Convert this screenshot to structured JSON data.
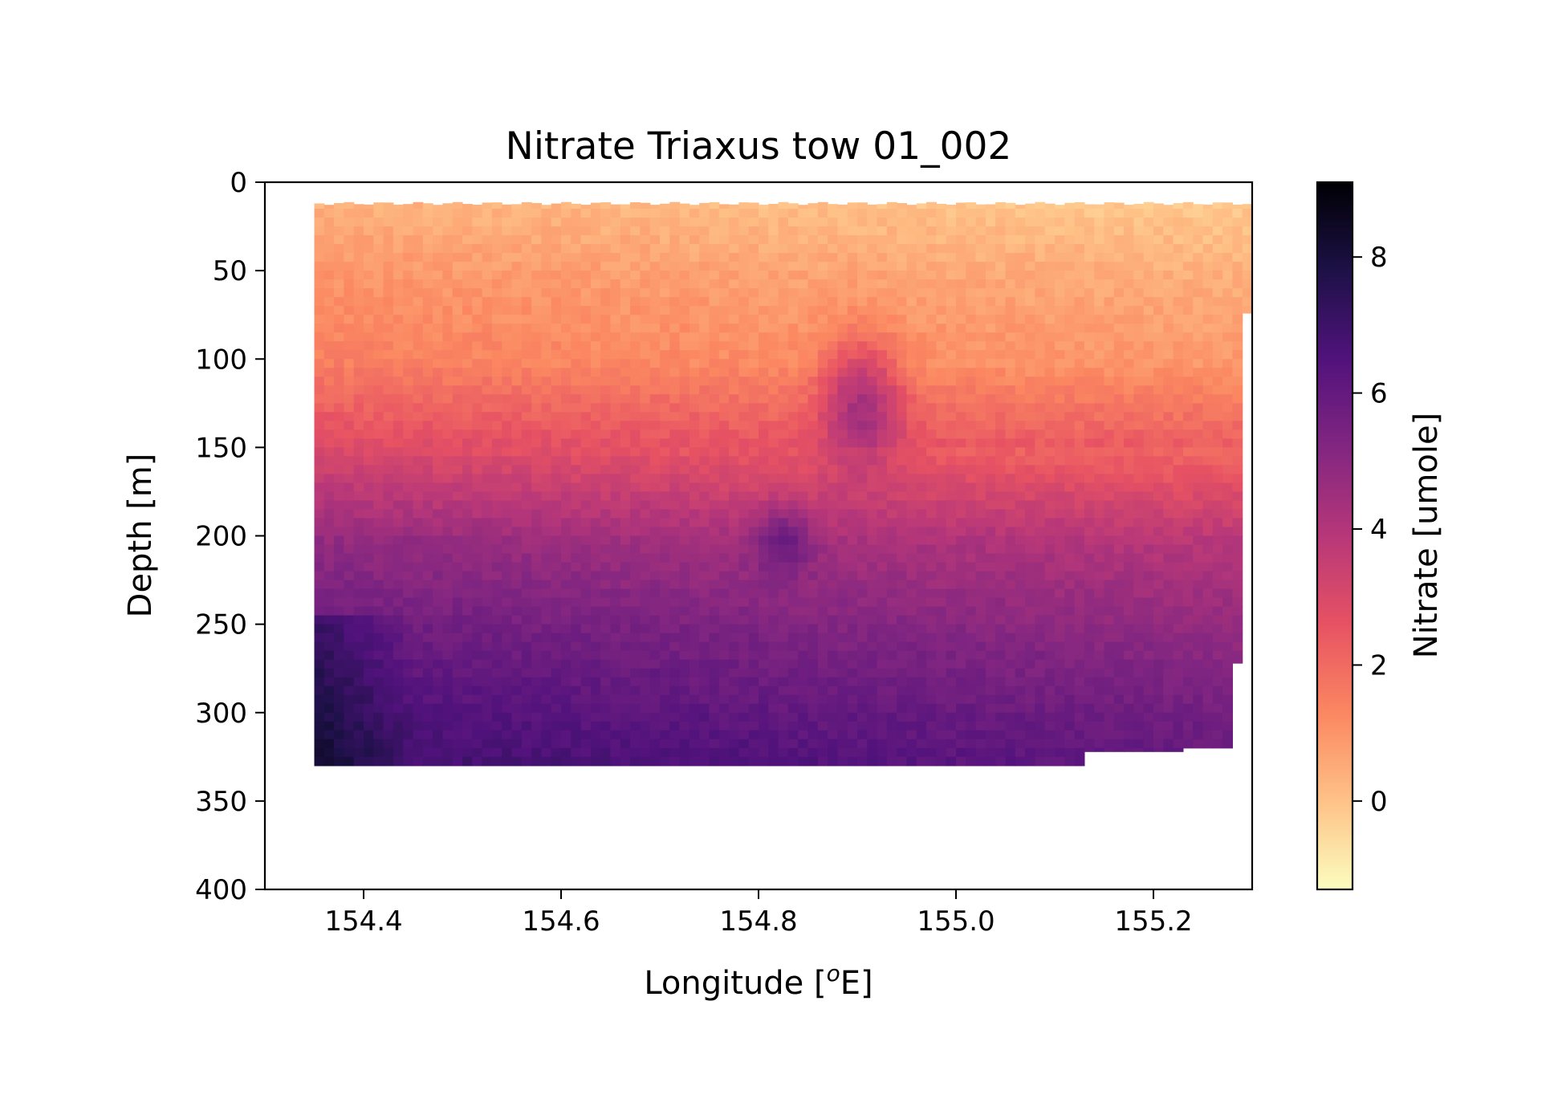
{
  "chart_data": {
    "type": "heatmap",
    "title": "Nitrate Triaxus tow 01_002",
    "xlabel": "Longitude [",
    "xlabel_sup": "o",
    "xlabel_tail": "E]",
    "ylabel": "Depth [m]",
    "xlim": [
      154.3,
      155.3
    ],
    "ylim": [
      400,
      0
    ],
    "y_inverted": true,
    "grid": false,
    "colormap": "magma_r",
    "xticks": [
      {
        "value": 154.4,
        "label": "154.4"
      },
      {
        "value": 154.6,
        "label": "154.6"
      },
      {
        "value": 154.8,
        "label": "154.8"
      },
      {
        "value": 155.0,
        "label": "155.0"
      },
      {
        "value": 155.2,
        "label": "155.2"
      }
    ],
    "yticks": [
      {
        "value": 0,
        "label": "0"
      },
      {
        "value": 50,
        "label": "50"
      },
      {
        "value": 100,
        "label": "100"
      },
      {
        "value": 150,
        "label": "150"
      },
      {
        "value": 200,
        "label": "200"
      },
      {
        "value": 250,
        "label": "250"
      },
      {
        "value": 300,
        "label": "300"
      },
      {
        "value": 350,
        "label": "350"
      },
      {
        "value": 400,
        "label": "400"
      }
    ],
    "colorbar": {
      "label": "Nitrate [umole]",
      "range": [
        -1.3,
        9.1
      ],
      "ticks": [
        {
          "value": 0,
          "label": "0"
        },
        {
          "value": 2,
          "label": "2"
        },
        {
          "value": 4,
          "label": "4"
        },
        {
          "value": 6,
          "label": "6"
        },
        {
          "value": 8,
          "label": "8"
        }
      ],
      "colors": [
        "#fcfdbf",
        "#fec287",
        "#fb8761",
        "#e75263",
        "#b73779",
        "#822681",
        "#51127c",
        "#1d1147",
        "#000004"
      ]
    },
    "data_extent": {
      "lon_min": 154.35,
      "lon_max": 155.3,
      "depth_top": 12,
      "depth_bottom": 330
    },
    "depth_profile": [
      {
        "depth": 10,
        "nitrate": 0.4
      },
      {
        "depth": 50,
        "nitrate": 1.0
      },
      {
        "depth": 100,
        "nitrate": 1.5
      },
      {
        "depth": 150,
        "nitrate": 3.0
      },
      {
        "depth": 200,
        "nitrate": 4.8
      },
      {
        "depth": 250,
        "nitrate": 5.8
      },
      {
        "depth": 300,
        "nitrate": 6.6
      },
      {
        "depth": 330,
        "nitrate": 7.0
      }
    ]
  }
}
